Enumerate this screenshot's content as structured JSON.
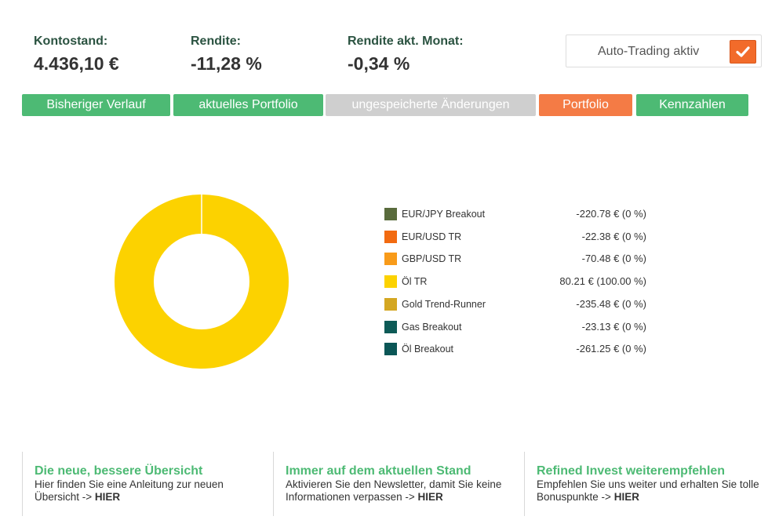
{
  "stats": {
    "balance": {
      "label": "Kontostand:",
      "value": "4.436,10 €"
    },
    "return": {
      "label": "Rendite:",
      "value": "-11,28 %"
    },
    "return_month": {
      "label": "Rendite akt. Monat:",
      "value": "-0,34 %"
    }
  },
  "auto_trading": {
    "label": "Auto-Trading aktiv",
    "checked": true,
    "check_icon": "checkmark-icon"
  },
  "tabs": [
    {
      "label": "Bisheriger Verlauf",
      "color": "#4dba74"
    },
    {
      "label": "aktuelles Portfolio",
      "color": "#4dba74"
    },
    {
      "label": "ungespeicherte Änderungen",
      "color": "#cfcfcf"
    },
    {
      "label": "Portfolio",
      "color": "#f47b45"
    },
    {
      "label": "Kennzahlen",
      "color": "#4dba74"
    }
  ],
  "chart_data": {
    "type": "pie",
    "donut": true,
    "slices": [
      {
        "name": "EUR/JPY Breakout",
        "value_text": "-220.78 € (0 %)",
        "percent": 0,
        "color": "#596b3c"
      },
      {
        "name": "EUR/USD TR",
        "value_text": "-22.38 € (0 %)",
        "percent": 0,
        "color": "#f26a10"
      },
      {
        "name": "GBP/USD TR",
        "value_text": "-70.48 € (0 %)",
        "percent": 0,
        "color": "#f89b1a"
      },
      {
        "name": "Öl TR",
        "value_text": "80.21 € (100.00 %)",
        "percent": 100,
        "color": "#fcd200"
      },
      {
        "name": "Gold Trend-Runner",
        "value_text": "-235.48 € (0 %)",
        "percent": 0,
        "color": "#d4a722"
      },
      {
        "name": "Gas Breakout",
        "value_text": "-23.13 € (0 %)",
        "percent": 0,
        "color": "#0d5a56"
      },
      {
        "name": "Öl Breakout",
        "value_text": "-261.25 € (0 %)",
        "percent": 0,
        "color": "#0b5656"
      }
    ]
  },
  "footer": [
    {
      "title": "Die neue, bessere Übersicht",
      "text": "Hier finden Sie eine Anleitung zur neuen Übersicht ->",
      "link": "HIER"
    },
    {
      "title": "Immer auf dem aktuellen Stand",
      "text": "Aktivieren Sie den Newsletter, damit Sie keine Informationen verpassen ->",
      "link": "HIER"
    },
    {
      "title": "Refined Invest weiterempfehlen",
      "text": "Empfehlen Sie uns weiter und erhalten Sie tolle Bonuspunkte ->",
      "link": "HIER"
    }
  ]
}
